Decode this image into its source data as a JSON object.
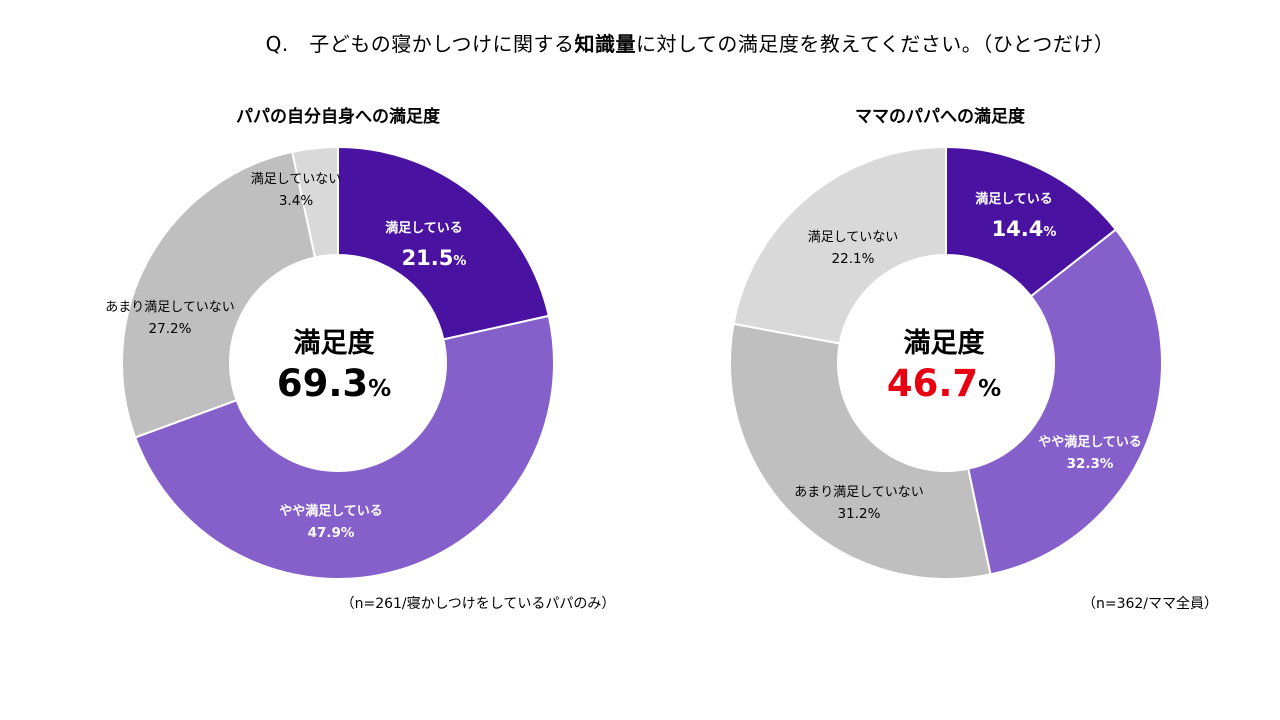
{
  "question": {
    "prefix": "Q.　子どもの寝かしつけに関する",
    "emphasis": "知識量",
    "suffix": "に対しての満足度を教えてください。（ひとつだけ）"
  },
  "colors": {
    "satisfied": "#4a12a0",
    "somewhat_satisfied": "#855fca",
    "not_very_satisfied": "#bfbfbf",
    "not_satisfied": "#d9d9d9",
    "highlight_red": "#e60012"
  },
  "chart_data": [
    {
      "type": "pie",
      "title": "パパの自分自身への満足度",
      "center_label": "満足度",
      "center_value": "69.3",
      "center_unit": "%",
      "center_value_color": "#000000",
      "note": "（n=261/寝かしつけをしているパパのみ）",
      "slices": [
        {
          "label": "満足している",
          "value": 21.5,
          "color": "#4a12a0",
          "text_color": "#ffffff",
          "bold": true,
          "big": true
        },
        {
          "label": "やや満足している",
          "value": 47.9,
          "color": "#855fca",
          "text_color": "#ffffff",
          "bold": true,
          "big": false
        },
        {
          "label": "あまり満足していない",
          "value": 27.2,
          "color": "#bfbfbf",
          "text_color": "#000000",
          "bold": false,
          "big": false
        },
        {
          "label": "満足していない",
          "value": 3.4,
          "color": "#d9d9d9",
          "text_color": "#000000",
          "bold": false,
          "big": false
        }
      ]
    },
    {
      "type": "pie",
      "title": "ママのパパへの満足度",
      "center_label": "満足度",
      "center_value": "46.7",
      "center_unit": "%",
      "center_value_color": "#e60012",
      "note": "（n=362/ママ全員）",
      "slices": [
        {
          "label": "満足している",
          "value": 14.4,
          "color": "#4a12a0",
          "text_color": "#ffffff",
          "bold": true,
          "big": true
        },
        {
          "label": "やや満足している",
          "value": 32.3,
          "color": "#855fca",
          "text_color": "#ffffff",
          "bold": true,
          "big": false
        },
        {
          "label": "あまり満足していない",
          "value": 31.2,
          "color": "#bfbfbf",
          "text_color": "#000000",
          "bold": false,
          "big": false
        },
        {
          "label": "満足していない",
          "value": 22.1,
          "color": "#d9d9d9",
          "text_color": "#000000",
          "bold": false,
          "big": false
        }
      ]
    }
  ]
}
